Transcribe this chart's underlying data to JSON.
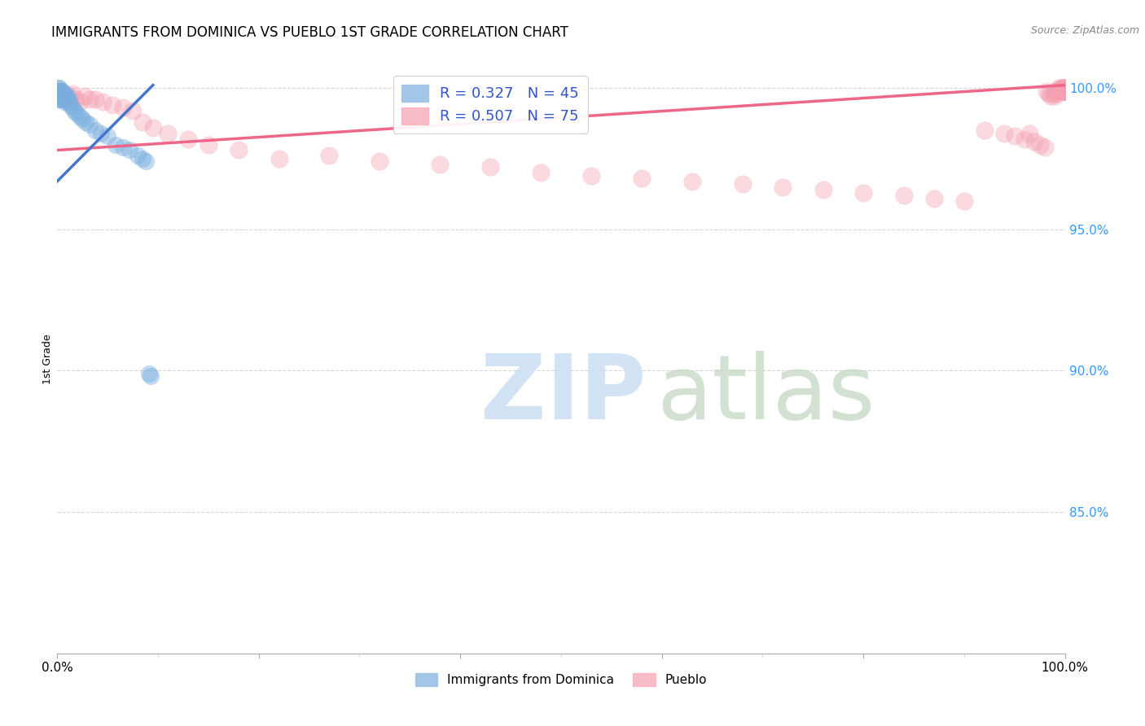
{
  "title": "IMMIGRANTS FROM DOMINICA VS PUEBLO 1ST GRADE CORRELATION CHART",
  "source": "Source: ZipAtlas.com",
  "ylabel": "1st Grade",
  "xlim": [
    0.0,
    1.0
  ],
  "ylim": [
    0.8,
    1.008
  ],
  "x_tick_labels": [
    "0.0%",
    "100.0%"
  ],
  "y_tick_labels_right": [
    "85.0%",
    "90.0%",
    "95.0%",
    "100.0%"
  ],
  "y_tick_values_right": [
    0.85,
    0.9,
    0.95,
    1.0
  ],
  "legend_label1": "R = 0.327   N = 45",
  "legend_label2": "R = 0.507   N = 75",
  "blue_color": "#7aafdf",
  "pink_color": "#f4a0b0",
  "blue_line_color": "#4477cc",
  "pink_line_color": "#ee6688",
  "grid_color": "#cccccc",
  "title_fontsize": 12,
  "blue_line_x": [
    0.0,
    0.095
  ],
  "blue_line_y": [
    0.967,
    1.001
  ],
  "pink_line_x": [
    0.0,
    1.0
  ],
  "pink_line_y": [
    0.978,
    1.001
  ],
  "blue_scatter_x": [
    0.0005,
    0.001,
    0.001,
    0.001,
    0.001,
    0.001,
    0.0015,
    0.002,
    0.002,
    0.002,
    0.003,
    0.003,
    0.003,
    0.004,
    0.004,
    0.005,
    0.005,
    0.006,
    0.006,
    0.007,
    0.007,
    0.008,
    0.009,
    0.01,
    0.011,
    0.012,
    0.013,
    0.015,
    0.017,
    0.019,
    0.022,
    0.025,
    0.028,
    0.032,
    0.038,
    0.043,
    0.05,
    0.058,
    0.065,
    0.072,
    0.08,
    0.085,
    0.088,
    0.091,
    0.093
  ],
  "blue_scatter_y": [
    0.999,
    1.0,
    0.999,
    0.998,
    0.997,
    0.996,
    1.0,
    0.999,
    0.998,
    0.997,
    0.999,
    0.998,
    0.996,
    0.999,
    0.997,
    0.999,
    0.996,
    0.998,
    0.996,
    0.998,
    0.995,
    0.997,
    0.996,
    0.997,
    0.996,
    0.995,
    0.994,
    0.993,
    0.992,
    0.991,
    0.99,
    0.989,
    0.988,
    0.987,
    0.985,
    0.984,
    0.983,
    0.98,
    0.979,
    0.978,
    0.976,
    0.975,
    0.974,
    0.899,
    0.898
  ],
  "pink_scatter_x": [
    0.001,
    0.002,
    0.003,
    0.005,
    0.007,
    0.009,
    0.012,
    0.015,
    0.018,
    0.022,
    0.027,
    0.032,
    0.038,
    0.045,
    0.055,
    0.065,
    0.075,
    0.085,
    0.095,
    0.11,
    0.13,
    0.15,
    0.18,
    0.22,
    0.27,
    0.32,
    0.38,
    0.43,
    0.48,
    0.53,
    0.58,
    0.63,
    0.68,
    0.72,
    0.76,
    0.8,
    0.84,
    0.87,
    0.9,
    0.92,
    0.94,
    0.95,
    0.96,
    0.965,
    0.97,
    0.975,
    0.98,
    0.982,
    0.984,
    0.986,
    0.988,
    0.99,
    0.991,
    0.992,
    0.993,
    0.994,
    0.995,
    0.996,
    0.997,
    0.997,
    0.998,
    0.998,
    0.999,
    0.999,
    1.0,
    1.0,
    1.0,
    1.0,
    1.0,
    1.0,
    1.0,
    1.0,
    1.0,
    1.0,
    1.0
  ],
  "pink_scatter_y": [
    0.999,
    0.998,
    0.999,
    0.997,
    0.998,
    0.996,
    0.997,
    0.998,
    0.996,
    0.995,
    0.997,
    0.996,
    0.996,
    0.995,
    0.994,
    0.993,
    0.992,
    0.988,
    0.986,
    0.984,
    0.982,
    0.98,
    0.978,
    0.975,
    0.976,
    0.974,
    0.973,
    0.972,
    0.97,
    0.969,
    0.968,
    0.967,
    0.966,
    0.965,
    0.964,
    0.963,
    0.962,
    0.961,
    0.96,
    0.985,
    0.984,
    0.983,
    0.982,
    0.984,
    0.981,
    0.98,
    0.979,
    0.999,
    0.998,
    0.997,
    0.998,
    0.997,
    0.999,
    0.998,
    0.999,
    1.0,
    0.999,
    1.0,
    0.999,
    1.0,
    0.999,
    1.0,
    0.999,
    1.0,
    0.999,
    1.0,
    0.999,
    1.0,
    0.999,
    1.0,
    0.999,
    1.0,
    0.999,
    1.0,
    0.999
  ]
}
